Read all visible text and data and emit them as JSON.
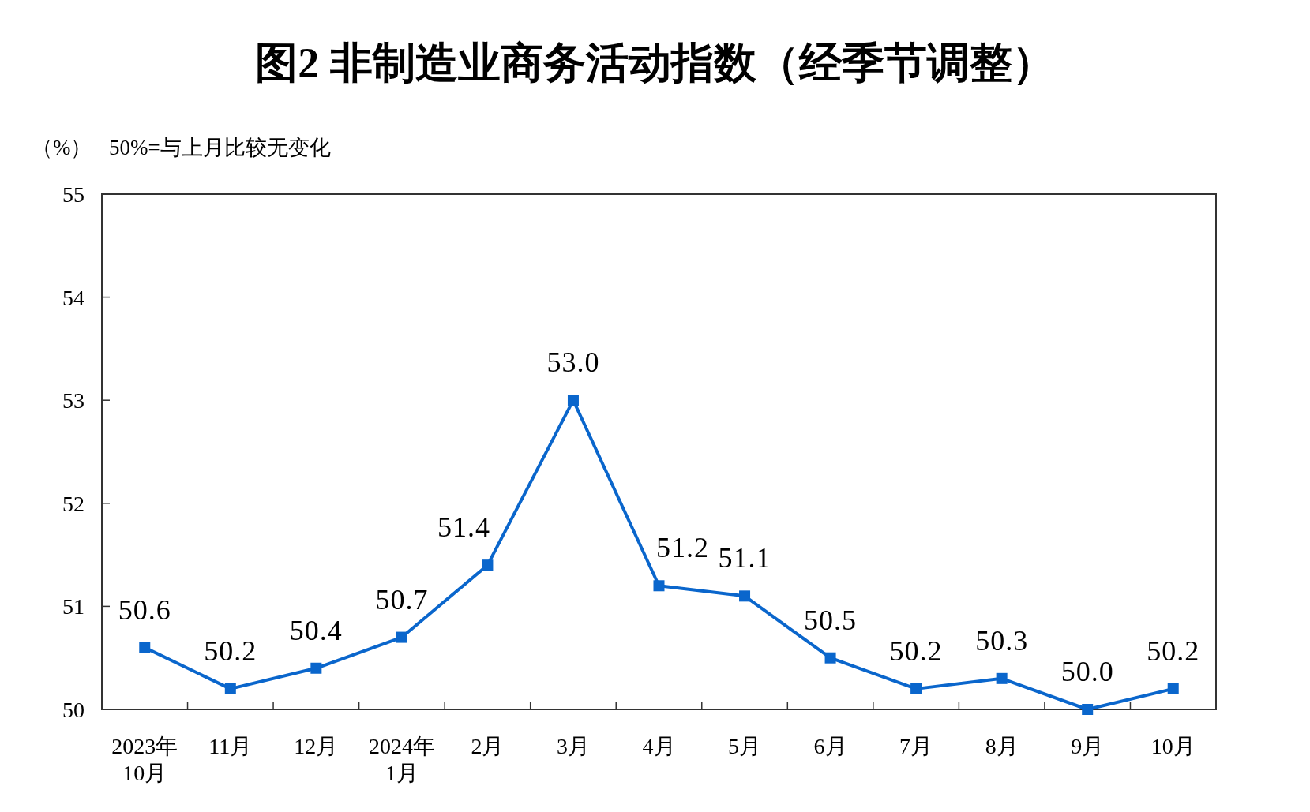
{
  "chart_data": {
    "type": "line",
    "title": "图2  非制造业商务活动指数（经季节调整）",
    "ylabel": "（%）",
    "annotations": [
      "50%=与上月比较无变化"
    ],
    "categories": [
      "2023年\n10月",
      "11月",
      "12月",
      "2024年\n1月",
      "2月",
      "3月",
      "4月",
      "5月",
      "6月",
      "7月",
      "8月",
      "9月",
      "10月"
    ],
    "series": [
      {
        "color": "#0a66cc",
        "values": [
          50.6,
          50.2,
          50.4,
          50.7,
          51.4,
          53.0,
          51.2,
          51.1,
          50.5,
          50.2,
          50.3,
          50.0,
          50.2
        ],
        "value_labels": [
          "50.6",
          "50.2",
          "50.4",
          "50.7",
          "51.4",
          "53.0",
          "51.2",
          "51.1",
          "50.5",
          "50.2",
          "50.3",
          "50.0",
          "50.2"
        ]
      }
    ],
    "ylim": [
      50,
      55
    ],
    "yticks": [
      50,
      51,
      52,
      53,
      54,
      55
    ],
    "marker": "square",
    "line_style": "solid",
    "grid": false
  }
}
